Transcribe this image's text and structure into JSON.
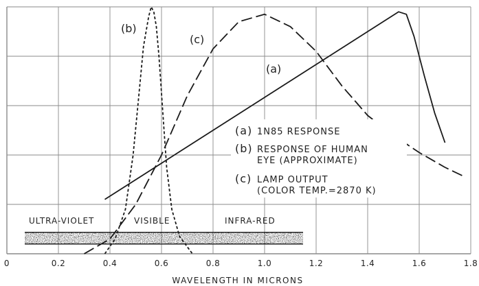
{
  "chart_data": {
    "type": "line",
    "xlabel": "WAVELENGTH IN MICRONS",
    "ylabel": "",
    "xlim": [
      0,
      1.8
    ],
    "ylim": [
      0,
      1
    ],
    "grid": true,
    "x_ticks": [
      "0",
      "0.2",
      "0.4",
      "0.6",
      "0.8",
      "1.0",
      "1.2",
      "1.4",
      "1.6",
      "1.8"
    ],
    "series": [
      {
        "name": "(a)",
        "style": "solid",
        "points": [
          [
            0.38,
            0.22
          ],
          [
            1.52,
            0.98
          ],
          [
            1.55,
            0.97
          ],
          [
            1.58,
            0.88
          ],
          [
            1.62,
            0.72
          ],
          [
            1.66,
            0.57
          ],
          [
            1.7,
            0.45
          ]
        ]
      },
      {
        "name": "(b)",
        "style": "short-dash",
        "points": [
          [
            0.38,
            0.0
          ],
          [
            0.42,
            0.06
          ],
          [
            0.46,
            0.18
          ],
          [
            0.49,
            0.4
          ],
          [
            0.51,
            0.62
          ],
          [
            0.53,
            0.84
          ],
          [
            0.55,
            0.96
          ],
          [
            0.56,
            1.0
          ],
          [
            0.57,
            0.98
          ],
          [
            0.58,
            0.92
          ],
          [
            0.59,
            0.8
          ],
          [
            0.6,
            0.65
          ],
          [
            0.61,
            0.5
          ],
          [
            0.62,
            0.35
          ],
          [
            0.64,
            0.18
          ],
          [
            0.67,
            0.07
          ],
          [
            0.72,
            0.0
          ]
        ]
      },
      {
        "name": "(c)",
        "style": "long-dash",
        "points": [
          [
            0.3,
            0.0
          ],
          [
            0.4,
            0.06
          ],
          [
            0.5,
            0.2
          ],
          [
            0.6,
            0.4
          ],
          [
            0.7,
            0.64
          ],
          [
            0.8,
            0.83
          ],
          [
            0.9,
            0.94
          ],
          [
            1.0,
            0.97
          ],
          [
            1.1,
            0.92
          ],
          [
            1.2,
            0.82
          ],
          [
            1.3,
            0.68
          ],
          [
            1.4,
            0.56
          ],
          [
            1.5,
            0.48
          ],
          [
            1.6,
            0.41
          ],
          [
            1.7,
            0.35
          ],
          [
            1.78,
            0.31
          ]
        ]
      }
    ],
    "curve_labels": [
      "(b)",
      "(c)",
      "(a)"
    ],
    "legend": {
      "placement": "center-right",
      "entries": [
        {
          "key": "(a)",
          "lines": [
            "1N85 RESPONSE"
          ]
        },
        {
          "key": "(b)",
          "lines": [
            "RESPONSE OF HUMAN",
            "EYE (APPROXIMATE)"
          ]
        },
        {
          "key": "(c)",
          "lines": [
            "LAMP OUTPUT",
            "(COLOR TEMP.=2870 K)"
          ]
        }
      ]
    },
    "spectrum_band": {
      "labels": [
        "ULTRA-VIOLET",
        "VISIBLE",
        "INFRA-RED"
      ]
    }
  }
}
